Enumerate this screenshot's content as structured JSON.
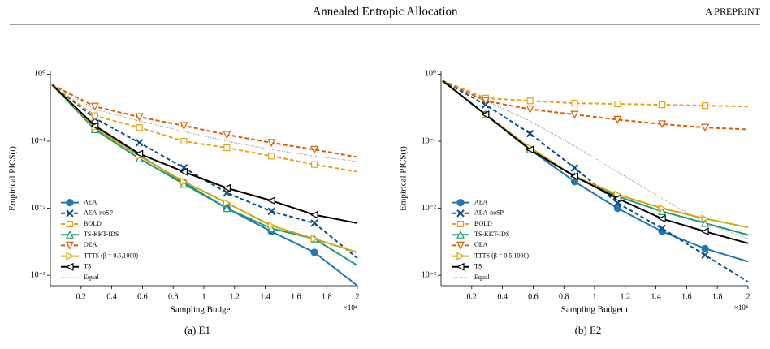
{
  "header": {
    "title": "Annealed Entropic Allocation",
    "right": "A PREPRINT"
  },
  "chart_data": [
    {
      "type": "line",
      "caption": "(a) E1",
      "x_label": "Sampling Budget t",
      "y_label": "Empirical PICS(t)",
      "x_offset_label": "×10⁴",
      "log_y": true,
      "legend": "lower left",
      "xlim": [
        0,
        2
      ],
      "xticks": [
        0.2,
        0.4,
        0.6,
        0.8,
        1,
        1.2,
        1.4,
        1.6,
        1.8,
        2
      ],
      "ylim": [
        0.0007,
        1.1
      ],
      "yticks": [
        {
          "value": 1,
          "label": "10⁰"
        },
        {
          "value": 0.1,
          "label": "10⁻¹"
        },
        {
          "value": 0.01,
          "label": "10⁻²"
        },
        {
          "value": 0.001,
          "label": "10⁻³"
        }
      ],
      "x": [
        0.01,
        0.29,
        0.58,
        0.87,
        1.15,
        1.44,
        1.72,
        2.0
      ],
      "series": [
        {
          "name": "AEA",
          "color": "#1f78b4",
          "marker": "circle",
          "dash": "solid",
          "values": [
            0.7,
            0.165,
            0.062,
            0.024,
            0.01,
            0.0045,
            0.0022,
            0.0007
          ]
        },
        {
          "name": "AEA-noSP",
          "color": "#0b4f8f",
          "marker": "x",
          "dash": "dashed",
          "values": [
            0.7,
            0.22,
            0.095,
            0.04,
            0.017,
            0.009,
            0.006,
            0.0018
          ]
        },
        {
          "name": "BOLD",
          "color": "#e8a317",
          "marker": "square",
          "dash": "dashed",
          "values": [
            0.7,
            0.24,
            0.16,
            0.1,
            0.08,
            0.06,
            0.045,
            0.035
          ]
        },
        {
          "name": "TS-KKT-IDS",
          "color": "#1a9e77",
          "marker": "triangle-up",
          "dash": "solid",
          "values": [
            0.7,
            0.15,
            0.055,
            0.023,
            0.01,
            0.005,
            0.0035,
            0.0014
          ]
        },
        {
          "name": "OEA",
          "color": "#d95f02",
          "marker": "triangle-down",
          "dash": "dashed",
          "values": [
            0.7,
            0.33,
            0.23,
            0.17,
            0.125,
            0.095,
            0.075,
            0.058
          ]
        },
        {
          "name": "TTTS (β = 0.5,1000)",
          "color": "#d4a60a",
          "marker": "triangle-right",
          "dash": "solid",
          "values": [
            0.7,
            0.16,
            0.06,
            0.025,
            0.012,
            0.0055,
            0.0035,
            0.0022
          ]
        },
        {
          "name": "TS",
          "color": "#000000",
          "marker": "triangle-left",
          "dash": "solid",
          "values": [
            0.7,
            0.17,
            0.065,
            0.035,
            0.02,
            0.013,
            0.008,
            0.006
          ]
        },
        {
          "name": "Equal",
          "color": "#999999",
          "marker": "none",
          "dash": "dotted",
          "values": [
            0.7,
            0.3,
            0.2,
            0.14,
            0.1,
            0.075,
            0.06,
            0.05
          ]
        }
      ]
    },
    {
      "type": "line",
      "caption": "(b) E2",
      "x_label": "Sampling Budget t",
      "y_label": "Empirical PICS(t)",
      "x_offset_label": "×10⁴",
      "log_y": true,
      "legend": "lower left",
      "xlim": [
        0,
        2
      ],
      "xticks": [
        0.2,
        0.4,
        0.6,
        0.8,
        1,
        1.2,
        1.4,
        1.6,
        1.8,
        2
      ],
      "ylim": [
        0.0007,
        1.1
      ],
      "yticks": [
        {
          "value": 1,
          "label": "10⁰"
        },
        {
          "value": 0.1,
          "label": "10⁻¹"
        },
        {
          "value": 0.01,
          "label": "10⁻²"
        },
        {
          "value": 0.001,
          "label": "10⁻³"
        }
      ],
      "x": [
        0.01,
        0.29,
        0.58,
        0.87,
        1.15,
        1.44,
        1.72,
        2.0
      ],
      "series": [
        {
          "name": "AEA",
          "color": "#1f78b4",
          "marker": "circle",
          "dash": "solid",
          "values": [
            0.8,
            0.25,
            0.075,
            0.025,
            0.01,
            0.0045,
            0.0025,
            0.0016
          ]
        },
        {
          "name": "AEA-noSP",
          "color": "#0b4f8f",
          "marker": "x",
          "dash": "dashed",
          "values": [
            0.8,
            0.35,
            0.13,
            0.04,
            0.012,
            0.005,
            0.002,
            0.0008
          ]
        },
        {
          "name": "BOLD",
          "color": "#e8a317",
          "marker": "square",
          "dash": "dashed",
          "values": [
            0.8,
            0.44,
            0.4,
            0.37,
            0.36,
            0.35,
            0.34,
            0.33
          ]
        },
        {
          "name": "TS-KKT-IDS",
          "color": "#1a9e77",
          "marker": "triangle-up",
          "dash": "solid",
          "values": [
            0.8,
            0.25,
            0.075,
            0.03,
            0.015,
            0.009,
            0.006,
            0.004
          ]
        },
        {
          "name": "OEA",
          "color": "#d95f02",
          "marker": "triangle-down",
          "dash": "dashed",
          "values": [
            0.8,
            0.4,
            0.3,
            0.25,
            0.21,
            0.18,
            0.16,
            0.15
          ]
        },
        {
          "name": "TTTS (β = 0.5,1000)",
          "color": "#d4a60a",
          "marker": "triangle-right",
          "dash": "solid",
          "values": [
            0.8,
            0.25,
            0.08,
            0.03,
            0.016,
            0.01,
            0.007,
            0.0052
          ]
        },
        {
          "name": "TS",
          "color": "#000000",
          "marker": "triangle-left",
          "dash": "solid",
          "values": [
            0.8,
            0.25,
            0.075,
            0.03,
            0.014,
            0.007,
            0.0045,
            0.003
          ]
        },
        {
          "name": "Equal",
          "color": "#999999",
          "marker": "none",
          "dash": "dotted",
          "values": [
            0.8,
            0.4,
            0.2,
            0.085,
            0.035,
            0.014,
            0.006,
            0.0035
          ]
        }
      ]
    }
  ]
}
